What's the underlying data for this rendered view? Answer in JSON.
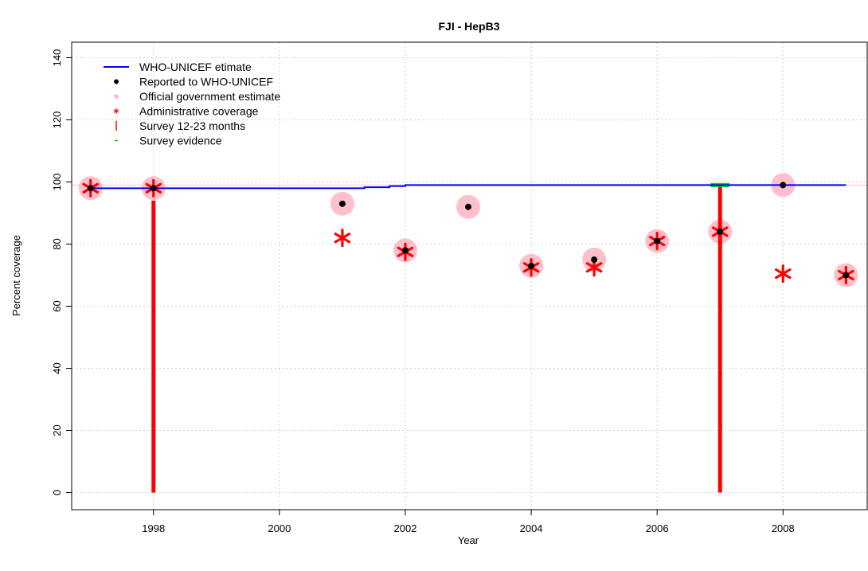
{
  "chart_data": {
    "type": "scatter",
    "title": "FJI  -  HepB3",
    "xlabel": "Year",
    "ylabel": "Percent coverage",
    "xlim": [
      1996.7,
      2009.35
    ],
    "ylim": [
      -5.5,
      145
    ],
    "x_ticks": [
      1998,
      2000,
      2002,
      2004,
      2006,
      2008
    ],
    "y_ticks": [
      0,
      20,
      40,
      60,
      80,
      100,
      120,
      140
    ],
    "grid": true,
    "legend_position": "top-left",
    "legend": [
      {
        "label": "WHO-UNICEF etimate",
        "symbol": "line",
        "color": "#0000ff"
      },
      {
        "label": "Reported to WHO-UNICEF",
        "symbol": "dot",
        "color": "#000000"
      },
      {
        "label": "Official government estimate",
        "symbol": "dot",
        "color": "#ffc0cb"
      },
      {
        "label": "Administrative coverage",
        "symbol": "star",
        "color": "#ff0000"
      },
      {
        "label": "Survey 12-23 months",
        "symbol": "bar",
        "color": "#ff0000"
      },
      {
        "label": "Survey evidence",
        "symbol": "dash",
        "color": "#00cc00"
      }
    ],
    "reference_line": {
      "y": 99,
      "color": "#ffc0cb"
    },
    "series": [
      {
        "name": "WHO-UNICEF etimate",
        "style": "step",
        "color": "#0000ff",
        "x": [
          1997,
          1998,
          1999,
          2000,
          2001,
          2001.35,
          2001.75,
          2002,
          2003,
          2004,
          2005,
          2006,
          2007,
          2008,
          2009
        ],
        "y": [
          98,
          98,
          98,
          98,
          98,
          98.3,
          98.7,
          99,
          99,
          99,
          99,
          99,
          99,
          99,
          99
        ]
      },
      {
        "name": "Reported to WHO-UNICEF",
        "color": "#000000",
        "x": [
          1997,
          1998,
          2001,
          2002,
          2003,
          2004,
          2005,
          2006,
          2007,
          2008,
          2009
        ],
        "y": [
          98,
          98,
          93,
          78,
          92,
          73,
          75,
          81,
          84,
          99,
          70
        ]
      },
      {
        "name": "Official government estimate",
        "color": "#ffc0cb",
        "x": [
          1997,
          1998,
          2001,
          2002,
          2003,
          2004,
          2005,
          2006,
          2007,
          2008,
          2009
        ],
        "y": [
          98,
          98,
          93,
          78,
          92,
          73,
          75,
          81,
          84,
          99,
          70
        ]
      },
      {
        "name": "Administrative coverage",
        "color": "#ff0000",
        "x": [
          1997,
          1998,
          2001,
          2002,
          2004,
          2005,
          2006,
          2007,
          2008,
          2009
        ],
        "y": [
          98,
          98,
          82,
          77.5,
          72.5,
          72.5,
          81,
          84,
          70.5,
          70
        ]
      },
      {
        "name": "Survey 12-23 months",
        "style": "vertical-bar",
        "color": "#ff0000",
        "x": [
          1998,
          2007
        ],
        "y": [
          94,
          99
        ]
      },
      {
        "name": "Survey evidence",
        "color": "#00cc00",
        "x": [
          2007
        ],
        "y": [
          99
        ]
      }
    ]
  }
}
